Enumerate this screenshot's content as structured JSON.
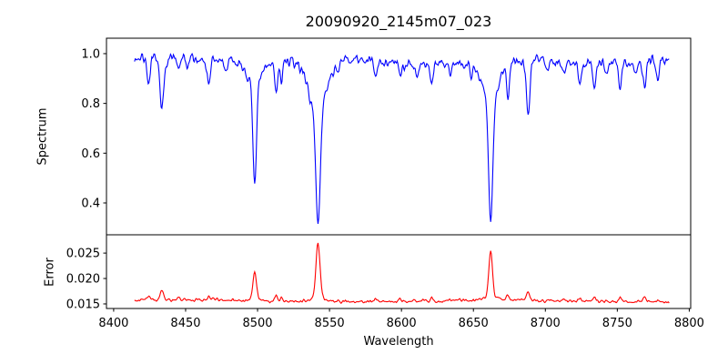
{
  "figure": {
    "title": "20090920_2145m07_023",
    "background_color": "#ffffff",
    "text_color": "#000000",
    "spine_color": "#000000"
  },
  "chart_data": {
    "type": "line",
    "title": "20090920_2145m07_023",
    "xlabel": "Wavelength",
    "x_lim": [
      8395,
      8801
    ],
    "x_ticks": [
      {
        "value": 8400,
        "label": "8400"
      },
      {
        "value": 8450,
        "label": "8450"
      },
      {
        "value": 8500,
        "label": "8500"
      },
      {
        "value": 8550,
        "label": "8550"
      },
      {
        "value": 8600,
        "label": "8600"
      },
      {
        "value": 8650,
        "label": "8650"
      },
      {
        "value": 8700,
        "label": "8700"
      },
      {
        "value": 8750,
        "label": "8750"
      },
      {
        "value": 8800,
        "label": "8800"
      }
    ],
    "x_start": 8414.5,
    "x_end": 8786,
    "x_step": 0.5,
    "grid": false,
    "legend": "none",
    "panels": [
      {
        "name": "spectrum",
        "ylabel": "Spectrum",
        "line_color": "#0000ff",
        "y_lim": [
          0.272,
          1.062
        ],
        "y_ticks": [
          {
            "value": 0.4,
            "label": "0.4"
          },
          {
            "value": 0.6,
            "label": "0.6"
          },
          {
            "value": 0.8,
            "label": "0.8"
          },
          {
            "value": 1.0,
            "label": "1.0"
          }
        ],
        "continuum_level": 0.972,
        "noise_sigma": 0.016,
        "absorption_lines": [
          {
            "center": 8424.5,
            "depth": 0.115,
            "sigma": 1.1
          },
          {
            "center": 8433.5,
            "depth": 0.215,
            "sigma": 1.4
          },
          {
            "center": 8445.0,
            "depth": 0.055,
            "sigma": 1.0
          },
          {
            "center": 8451.0,
            "depth": 0.045,
            "sigma": 0.9
          },
          {
            "center": 8466.0,
            "depth": 0.095,
            "sigma": 1.1
          },
          {
            "center": 8478.0,
            "depth": 0.04,
            "sigma": 0.9
          },
          {
            "center": 8498.0,
            "depth": 0.4,
            "sigma": 1.2
          },
          {
            "center": 8498.0,
            "depth": 0.105,
            "sigma": 4.5
          },
          {
            "center": 8513.0,
            "depth": 0.13,
            "sigma": 0.9
          },
          {
            "center": 8516.5,
            "depth": 0.095,
            "sigma": 0.8
          },
          {
            "center": 8536.0,
            "depth": 0.04,
            "sigma": 0.9
          },
          {
            "center": 8542.0,
            "depth": 0.5,
            "sigma": 1.6
          },
          {
            "center": 8542.0,
            "depth": 0.18,
            "sigma": 6.5
          },
          {
            "center": 8556.0,
            "depth": 0.05,
            "sigma": 0.9
          },
          {
            "center": 8582.0,
            "depth": 0.075,
            "sigma": 1.0
          },
          {
            "center": 8599.0,
            "depth": 0.065,
            "sigma": 0.9
          },
          {
            "center": 8611.0,
            "depth": 0.055,
            "sigma": 0.9
          },
          {
            "center": 8621.0,
            "depth": 0.075,
            "sigma": 1.0
          },
          {
            "center": 8634.0,
            "depth": 0.04,
            "sigma": 0.9
          },
          {
            "center": 8648.5,
            "depth": 0.05,
            "sigma": 0.9
          },
          {
            "center": 8662.0,
            "depth": 0.5,
            "sigma": 1.4
          },
          {
            "center": 8662.0,
            "depth": 0.17,
            "sigma": 5.5
          },
          {
            "center": 8674.0,
            "depth": 0.145,
            "sigma": 0.9
          },
          {
            "center": 8688.0,
            "depth": 0.215,
            "sigma": 1.2
          },
          {
            "center": 8702.0,
            "depth": 0.04,
            "sigma": 0.9
          },
          {
            "center": 8713.0,
            "depth": 0.055,
            "sigma": 0.9
          },
          {
            "center": 8724.0,
            "depth": 0.075,
            "sigma": 1.1
          },
          {
            "center": 8734.0,
            "depth": 0.095,
            "sigma": 1.1
          },
          {
            "center": 8742.0,
            "depth": 0.05,
            "sigma": 0.9
          },
          {
            "center": 8752.0,
            "depth": 0.105,
            "sigma": 1.1
          },
          {
            "center": 8763.0,
            "depth": 0.06,
            "sigma": 0.9
          },
          {
            "center": 8769.0,
            "depth": 0.115,
            "sigma": 1.1
          },
          {
            "center": 8778.0,
            "depth": 0.07,
            "sigma": 1.0
          }
        ]
      },
      {
        "name": "error",
        "ylabel": "Error",
        "line_color": "#ff0000",
        "y_lim": [
          0.0141,
          0.0286
        ],
        "y_ticks": [
          {
            "value": 0.015,
            "label": "0.015"
          },
          {
            "value": 0.02,
            "label": "0.020"
          },
          {
            "value": 0.025,
            "label": "0.025"
          }
        ],
        "baseline_level": 0.0156,
        "noise_sigma": 0.00022,
        "peaks": [
          {
            "center": 8424.5,
            "height": 0.0008,
            "sigma": 1.0
          },
          {
            "center": 8433.5,
            "height": 0.0019,
            "sigma": 1.2
          },
          {
            "center": 8445.0,
            "height": 0.0005,
            "sigma": 0.9
          },
          {
            "center": 8466.0,
            "height": 0.0007,
            "sigma": 1.0
          },
          {
            "center": 8498.0,
            "height": 0.005,
            "sigma": 1.2
          },
          {
            "center": 8498.0,
            "height": 0.0006,
            "sigma": 3.0
          },
          {
            "center": 8513.0,
            "height": 0.0012,
            "sigma": 0.9
          },
          {
            "center": 8516.5,
            "height": 0.0007,
            "sigma": 0.8
          },
          {
            "center": 8542.0,
            "height": 0.0105,
            "sigma": 1.4
          },
          {
            "center": 8542.0,
            "height": 0.001,
            "sigma": 4.0
          },
          {
            "center": 8556.0,
            "height": 0.0004,
            "sigma": 0.9
          },
          {
            "center": 8582.0,
            "height": 0.0006,
            "sigma": 1.0
          },
          {
            "center": 8599.0,
            "height": 0.0005,
            "sigma": 0.9
          },
          {
            "center": 8621.0,
            "height": 0.0005,
            "sigma": 1.0
          },
          {
            "center": 8662.0,
            "height": 0.0088,
            "sigma": 1.2
          },
          {
            "center": 8662.0,
            "height": 0.0008,
            "sigma": 3.5
          },
          {
            "center": 8674.0,
            "height": 0.0009,
            "sigma": 0.9
          },
          {
            "center": 8688.0,
            "height": 0.0017,
            "sigma": 1.1
          },
          {
            "center": 8713.0,
            "height": 0.0004,
            "sigma": 0.9
          },
          {
            "center": 8724.0,
            "height": 0.0005,
            "sigma": 1.0
          },
          {
            "center": 8734.0,
            "height": 0.0006,
            "sigma": 1.0
          },
          {
            "center": 8752.0,
            "height": 0.0007,
            "sigma": 1.0
          },
          {
            "center": 8769.0,
            "height": 0.001,
            "sigma": 1.0
          },
          {
            "center": 8778.0,
            "height": 0.0005,
            "sigma": 0.9
          }
        ]
      }
    ]
  }
}
